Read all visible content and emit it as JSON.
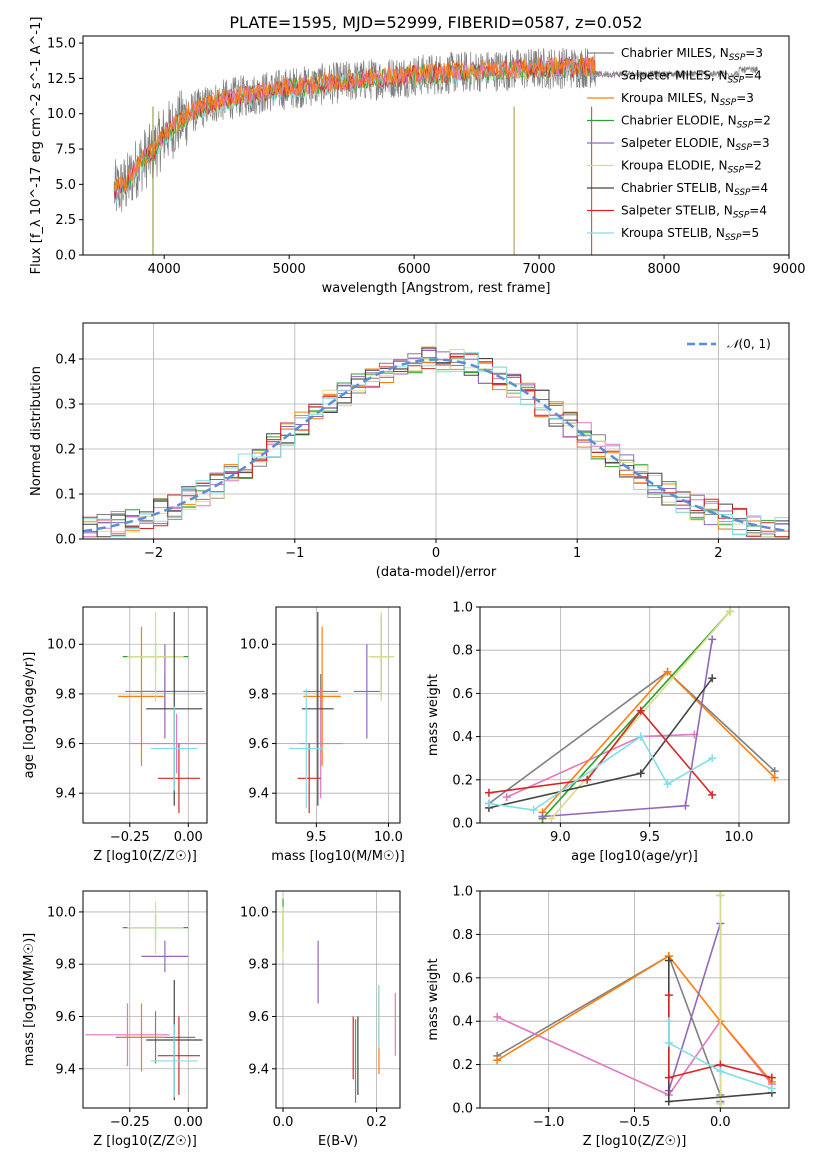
{
  "colors": {
    "series": [
      "#808080",
      "#e377c2",
      "#ff7f0e",
      "#2ca02c",
      "#9467bd",
      "#dbdb8d",
      "#444444",
      "#d62728",
      "#84dee6"
    ],
    "blue": "#5b8ed6"
  },
  "chart_data": [
    {
      "id": "spectrum",
      "type": "line",
      "title": "PLATE=1595, MJD=52999, FIBERID=0587, z=0.052",
      "xlabel": "wavelength [Angstrom, rest frame]",
      "ylabel": "Flux [f_λ 10^-17 erg cm^-2 s^-1 A^-1]",
      "xlim": [
        3350,
        9000
      ],
      "ylim": [
        0,
        15.5
      ],
      "xticks": [
        4000,
        5000,
        6000,
        7000,
        8000,
        9000
      ],
      "yticks": [
        0.0,
        2.5,
        5.0,
        7.5,
        10.0,
        12.5,
        15.0
      ],
      "xtick_labels": [
        "4000",
        "5000",
        "6000",
        "7000",
        "8000",
        "9000"
      ],
      "ytick_labels": [
        "0.0",
        "2.5",
        "5.0",
        "7.5",
        "10.0",
        "12.5",
        "15.0"
      ],
      "grid": false,
      "legend_position": "right",
      "legend": [
        "Chabrier MILES, N_SSP=3",
        "Salpeter MILES, N_SSP=4",
        "Kroupa MILES, N_SSP=3",
        "Chabrier ELODIE, N_SSP=2",
        "Salpeter ELODIE, N_SSP=3",
        "Kroupa ELODIE, N_SSP=2",
        "Chabrier STELIB, N_SSP=4",
        "Salpeter STELIB, N_SSP=4",
        "Kroupa STELIB, N_SSP=5"
      ],
      "legend_display": [
        "Chabrier MILES, N<SSP>=3",
        "Salpeter MILES, N<SSP>=4",
        "Kroupa MILES, N<SSP>=3",
        "Chabrier ELODIE, N<SSP>=2",
        "Salpeter ELODIE, N<SSP>=3",
        "Kroupa ELODIE, N<SSP>=2",
        "Chabrier STELIB, N<SSP>=4",
        "Salpeter STELIB, N<SSP>=4",
        "Kroupa STELIB, N<SSP>=5"
      ],
      "continuum": {
        "x": [
          3600,
          3700,
          3800,
          3900,
          4000,
          4200,
          4400,
          4600,
          4800,
          5000,
          5500,
          6000,
          6500,
          7000,
          7400
        ],
        "y": [
          4.5,
          5.0,
          6.5,
          7.2,
          8.5,
          10.0,
          10.8,
          11.2,
          11.5,
          11.8,
          12.3,
          12.7,
          13.0,
          13.2,
          13.3
        ]
      },
      "data_xrange": [
        3600,
        8750
      ],
      "model_xrange": [
        3600,
        7450
      ]
    },
    {
      "id": "residuals",
      "type": "histogram",
      "xlabel": "(data-model)/error",
      "ylabel": "Normed distribution",
      "xlim": [
        -2.5,
        2.5
      ],
      "ylim": [
        0,
        0.48
      ],
      "xticks": [
        -2,
        -1,
        0,
        1,
        2
      ],
      "xtick_labels": [
        "−2",
        "−1",
        "0",
        "1",
        "2"
      ],
      "yticks": [
        0.0,
        0.1,
        0.2,
        0.3,
        0.4
      ],
      "ytick_labels": [
        "0.0",
        "0.1",
        "0.2",
        "0.3",
        "0.4"
      ],
      "grid": true,
      "legend": [
        "N(0,1)"
      ],
      "legend_position": "top-right",
      "bin_width": 0.1
    },
    {
      "id": "age_vs_Z",
      "type": "errorbar",
      "xlabel": "Z [log10(Z/Z☉)]",
      "ylabel": "age [log10(age/yr)]",
      "xlim": [
        -0.45,
        0.08
      ],
      "ylim": [
        9.28,
        10.15
      ],
      "xticks": [
        -0.25,
        0.0
      ],
      "xtick_labels": [
        "−0.25",
        "0.00"
      ],
      "yticks": [
        9.4,
        9.6,
        9.8,
        10.0
      ],
      "ytick_labels": [
        "9.4",
        "9.6",
        "9.8",
        "10.0"
      ],
      "grid": true,
      "points": [
        {
          "x": -0.1,
          "y": 9.81,
          "xe": 0.17,
          "ye": 0.07,
          "c": 0
        },
        {
          "x": -0.05,
          "y": 9.6,
          "xe": 0.2,
          "ye": 0.12,
          "c": 1
        },
        {
          "x": -0.2,
          "y": 9.79,
          "xe": 0.1,
          "ye": 0.28,
          "c": 2
        },
        {
          "x": -0.14,
          "y": 9.95,
          "xe": 0.14,
          "ye": 0.06,
          "c": 3
        },
        {
          "x": -0.1,
          "y": 9.81,
          "xe": 0.1,
          "ye": 0.19,
          "c": 4
        },
        {
          "x": -0.14,
          "y": 9.95,
          "xe": 0.12,
          "ye": 0.18,
          "c": 5
        },
        {
          "x": -0.06,
          "y": 9.74,
          "xe": 0.12,
          "ye": 0.39,
          "c": 6
        },
        {
          "x": -0.04,
          "y": 9.46,
          "xe": 0.09,
          "ye": 0.14,
          "c": 7
        },
        {
          "x": -0.06,
          "y": 9.58,
          "xe": 0.1,
          "ye": 0.17,
          "c": 8
        }
      ]
    },
    {
      "id": "age_vs_mass",
      "type": "errorbar",
      "xlabel": "mass [log10(M/M☉)]",
      "ylabel": "",
      "xlim": [
        9.22,
        10.08
      ],
      "ylim": [
        9.28,
        10.15
      ],
      "xticks": [
        9.5,
        10.0
      ],
      "xtick_labels": [
        "9.5",
        "10.0"
      ],
      "yticks": [
        9.4,
        9.6,
        9.8,
        10.0
      ],
      "ytick_labels": [
        "9.4",
        "9.6",
        "9.8",
        "10.0"
      ],
      "grid": true,
      "points": [
        {
          "x": 9.53,
          "y": 9.81,
          "xe": 0.12,
          "ye": 0.07,
          "c": 0
        },
        {
          "x": 9.53,
          "y": 9.6,
          "xe": 0.15,
          "ye": 0.22,
          "c": 1
        },
        {
          "x": 9.54,
          "y": 9.79,
          "xe": 0.13,
          "ye": 0.28,
          "c": 2
        },
        {
          "x": 9.95,
          "y": 9.95,
          "xe": 0.07,
          "ye": 0.16,
          "c": 3
        },
        {
          "x": 9.85,
          "y": 9.81,
          "xe": 0.09,
          "ye": 0.19,
          "c": 4
        },
        {
          "x": 9.95,
          "y": 9.95,
          "xe": 0.09,
          "ye": 0.18,
          "c": 5
        },
        {
          "x": 9.51,
          "y": 9.74,
          "xe": 0.11,
          "ye": 0.39,
          "c": 6
        },
        {
          "x": 9.45,
          "y": 9.46,
          "xe": 0.08,
          "ye": 0.14,
          "c": 7
        },
        {
          "x": 9.43,
          "y": 9.58,
          "xe": 0.12,
          "ye": 0.24,
          "c": 8
        }
      ]
    },
    {
      "id": "mass_weight_vs_age",
      "type": "line",
      "xlabel": "age [log10(age/yr)]",
      "ylabel": "mass weight",
      "xlim": [
        8.55,
        10.28
      ],
      "ylim": [
        0,
        1.0
      ],
      "xticks": [
        9.0,
        9.5,
        10.0
      ],
      "xtick_labels": [
        "9.0",
        "9.5",
        "10.0"
      ],
      "yticks": [
        0.0,
        0.2,
        0.4,
        0.6,
        0.8,
        1.0
      ],
      "ytick_labels": [
        "0.0",
        "0.2",
        "0.4",
        "0.6",
        "0.8",
        "1.0"
      ],
      "grid": true,
      "series": [
        {
          "c": 0,
          "x": [
            8.6,
            9.6,
            10.2
          ],
          "y": [
            0.09,
            0.7,
            0.24
          ]
        },
        {
          "c": 1,
          "x": [
            8.7,
            9.45,
            9.75
          ],
          "y": [
            0.12,
            0.4,
            0.41
          ]
        },
        {
          "c": 2,
          "x": [
            8.9,
            9.6,
            10.2
          ],
          "y": [
            0.05,
            0.7,
            0.21
          ]
        },
        {
          "c": 3,
          "x": [
            8.9,
            9.95
          ],
          "y": [
            0.02,
            0.98
          ]
        },
        {
          "c": 4,
          "x": [
            8.9,
            9.7,
            9.85
          ],
          "y": [
            0.03,
            0.08,
            0.85
          ]
        },
        {
          "c": 5,
          "x": [
            8.95,
            9.95
          ],
          "y": [
            0.02,
            0.98
          ]
        },
        {
          "c": 6,
          "x": [
            8.6,
            9.45,
            9.85
          ],
          "y": [
            0.07,
            0.23,
            0.67
          ]
        },
        {
          "c": 7,
          "x": [
            8.6,
            9.15,
            9.45,
            9.85
          ],
          "y": [
            0.14,
            0.2,
            0.52,
            0.13
          ]
        },
        {
          "c": 8,
          "x": [
            8.6,
            8.85,
            9.45,
            9.6,
            9.85
          ],
          "y": [
            0.09,
            0.06,
            0.4,
            0.18,
            0.3
          ]
        }
      ]
    },
    {
      "id": "mass_vs_Z",
      "type": "errorbar",
      "xlabel": "Z [log10(Z/Z☉)]",
      "ylabel": "mass [log10(M/M☉)]",
      "xlim": [
        -0.45,
        0.08
      ],
      "ylim": [
        9.25,
        10.08
      ],
      "xticks": [
        -0.25,
        0.0
      ],
      "xtick_labels": [
        "−0.25",
        "0.00"
      ],
      "yticks": [
        9.4,
        9.6,
        9.8,
        10.0
      ],
      "ytick_labels": [
        "9.4",
        "9.6",
        "9.8",
        "10.0"
      ],
      "grid": true,
      "points": [
        {
          "x": -0.14,
          "y": 9.52,
          "xe": 0.17,
          "ye": 0.1,
          "c": 0
        },
        {
          "x": -0.26,
          "y": 9.53,
          "xe": 0.18,
          "ye": 0.12,
          "c": 1
        },
        {
          "x": -0.2,
          "y": 9.52,
          "xe": 0.1,
          "ye": 0.13,
          "c": 2
        },
        {
          "x": -0.14,
          "y": 9.94,
          "xe": 0.14,
          "ye": 0.05,
          "c": 3
        },
        {
          "x": -0.1,
          "y": 9.83,
          "xe": 0.1,
          "ye": 0.06,
          "c": 4
        },
        {
          "x": -0.14,
          "y": 9.94,
          "xe": 0.12,
          "ye": 0.1,
          "c": 5
        },
        {
          "x": -0.06,
          "y": 9.51,
          "xe": 0.12,
          "ye": 0.23,
          "c": 6
        },
        {
          "x": -0.04,
          "y": 9.45,
          "xe": 0.09,
          "ye": 0.15,
          "c": 7
        },
        {
          "x": -0.06,
          "y": 9.43,
          "xe": 0.1,
          "ye": 0.14,
          "c": 8
        }
      ]
    },
    {
      "id": "mass_vs_ebv",
      "type": "errorbar",
      "xlabel": "E(B-V)",
      "ylabel": "",
      "xlim": [
        -0.015,
        0.25
      ],
      "ylim": [
        9.25,
        10.08
      ],
      "xticks": [
        0.0,
        0.2
      ],
      "xtick_labels": [
        "0.0",
        "0.2"
      ],
      "yticks": [
        9.4,
        9.6,
        9.8,
        10.0
      ],
      "ytick_labels": [
        "9.4",
        "9.6",
        "9.8",
        "10.0"
      ],
      "grid": true,
      "points": [
        {
          "x": 0.155,
          "y": 9.43,
          "xe": 0,
          "ye": 0.16,
          "c": 0
        },
        {
          "x": 0.24,
          "y": 9.57,
          "xe": 0,
          "ye": 0.12,
          "c": 1
        },
        {
          "x": 0.205,
          "y": 9.55,
          "xe": 0,
          "ye": 0.17,
          "c": 2
        },
        {
          "x": 0.0,
          "y": 9.95,
          "xe": 0,
          "ye": 0.1,
          "c": 3
        },
        {
          "x": 0.075,
          "y": 9.77,
          "xe": 0,
          "ye": 0.12,
          "c": 4
        },
        {
          "x": 0.0,
          "y": 9.92,
          "xe": 0,
          "ye": 0.1,
          "c": 5
        },
        {
          "x": 0.16,
          "y": 9.45,
          "xe": 0,
          "ye": 0.15,
          "c": 6
        },
        {
          "x": 0.15,
          "y": 9.48,
          "xe": 0,
          "ye": 0.12,
          "c": 7
        },
        {
          "x": 0.205,
          "y": 9.6,
          "xe": 0,
          "ye": 0.12,
          "c": 8
        }
      ]
    },
    {
      "id": "mass_weight_vs_Z",
      "type": "line",
      "xlabel": "Z [log10(Z/Z☉)]",
      "ylabel": "mass weight",
      "xlim": [
        -1.4,
        0.4
      ],
      "ylim": [
        0,
        1.0
      ],
      "xticks": [
        -1.0,
        -0.5,
        0.0
      ],
      "xtick_labels": [
        "−1.0",
        "−0.5",
        "0.0"
      ],
      "yticks": [
        0.0,
        0.2,
        0.4,
        0.6,
        0.8,
        1.0
      ],
      "ytick_labels": [
        "0.0",
        "0.2",
        "0.4",
        "0.6",
        "0.8",
        "1.0"
      ],
      "grid": true,
      "series": [
        {
          "c": 0,
          "x": [
            -1.3,
            -0.3,
            0.0
          ],
          "y": [
            0.24,
            0.7,
            0.06
          ]
        },
        {
          "c": 1,
          "x": [
            -1.3,
            -0.3,
            0.0,
            0.3
          ],
          "y": [
            0.42,
            0.06,
            0.4,
            0.11
          ]
        },
        {
          "c": 2,
          "x": [
            -1.3,
            -0.3,
            0.0,
            0.3
          ],
          "y": [
            0.22,
            0.7,
            0.4,
            0.12
          ]
        },
        {
          "c": 3,
          "x": [
            0.0,
            0.0
          ],
          "y": [
            0.98,
            0.02
          ]
        },
        {
          "c": 4,
          "x": [
            -0.3,
            0.0,
            0.0
          ],
          "y": [
            0.08,
            0.85,
            0.03
          ]
        },
        {
          "c": 5,
          "x": [
            0.0,
            0.0
          ],
          "y": [
            0.98,
            0.02
          ]
        },
        {
          "c": 6,
          "x": [
            -0.3,
            -0.3,
            0.3
          ],
          "y": [
            0.68,
            0.03,
            0.07
          ]
        },
        {
          "c": 7,
          "x": [
            -0.3,
            -0.3,
            0.0,
            0.3
          ],
          "y": [
            0.52,
            0.14,
            0.2,
            0.14
          ]
        },
        {
          "c": 8,
          "x": [
            -0.3,
            -0.3,
            0.0,
            0.3
          ],
          "y": [
            0.4,
            0.3,
            0.17,
            0.09
          ]
        }
      ]
    }
  ]
}
